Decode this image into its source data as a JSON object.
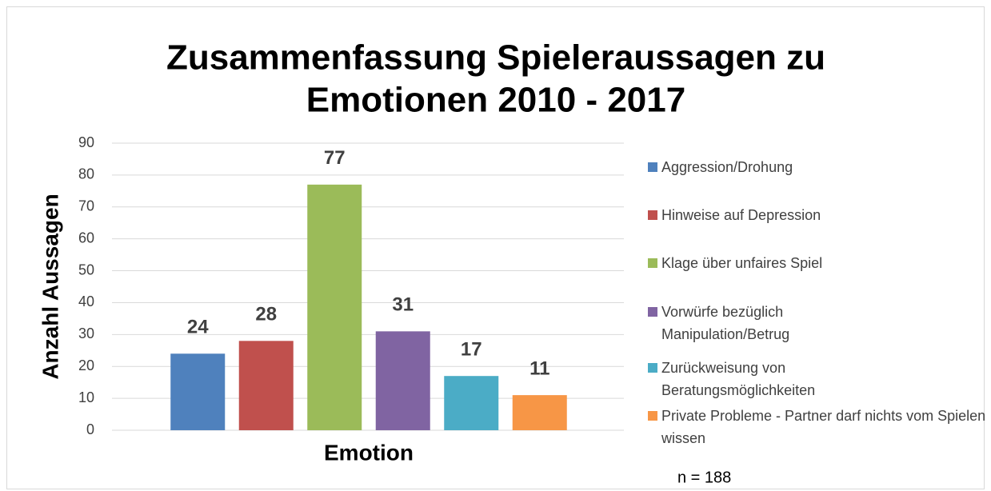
{
  "chart_data": {
    "type": "bar",
    "title": [
      "Zusammenfassung Spieleraussagen zu",
      "Emotionen 2010 - 2017"
    ],
    "xlabel": "Emotion",
    "ylabel": "Anzahl Aussagen",
    "categories": [
      null
    ],
    "series": [
      {
        "name": "Aggression/Drohung",
        "color": "#4f81bd",
        "values": [
          24
        ]
      },
      {
        "name": "Hinweise auf Depression",
        "color": "#c0504d",
        "values": [
          28
        ]
      },
      {
        "name": "Klage über unfaires Spiel",
        "color": "#9bbb59",
        "values": [
          77
        ]
      },
      {
        "name": "Vorwürfe bezüglich Manipulation/Betrug",
        "color": "#8064a2",
        "values": [
          31
        ]
      },
      {
        "name": "Zurückweisung von Beratungsmöglichkeiten",
        "color": "#4bacc6",
        "values": [
          17
        ]
      },
      {
        "name": "Private Probleme - Partner darf nichts vom Spielen wissen",
        "color": "#f79646",
        "values": [
          11
        ]
      }
    ],
    "ylim": [
      0,
      90
    ],
    "yticks": [
      0,
      10,
      20,
      30,
      40,
      50,
      60,
      70,
      80,
      90
    ],
    "grid": true,
    "legend": "right",
    "annotation": "n = 188"
  }
}
